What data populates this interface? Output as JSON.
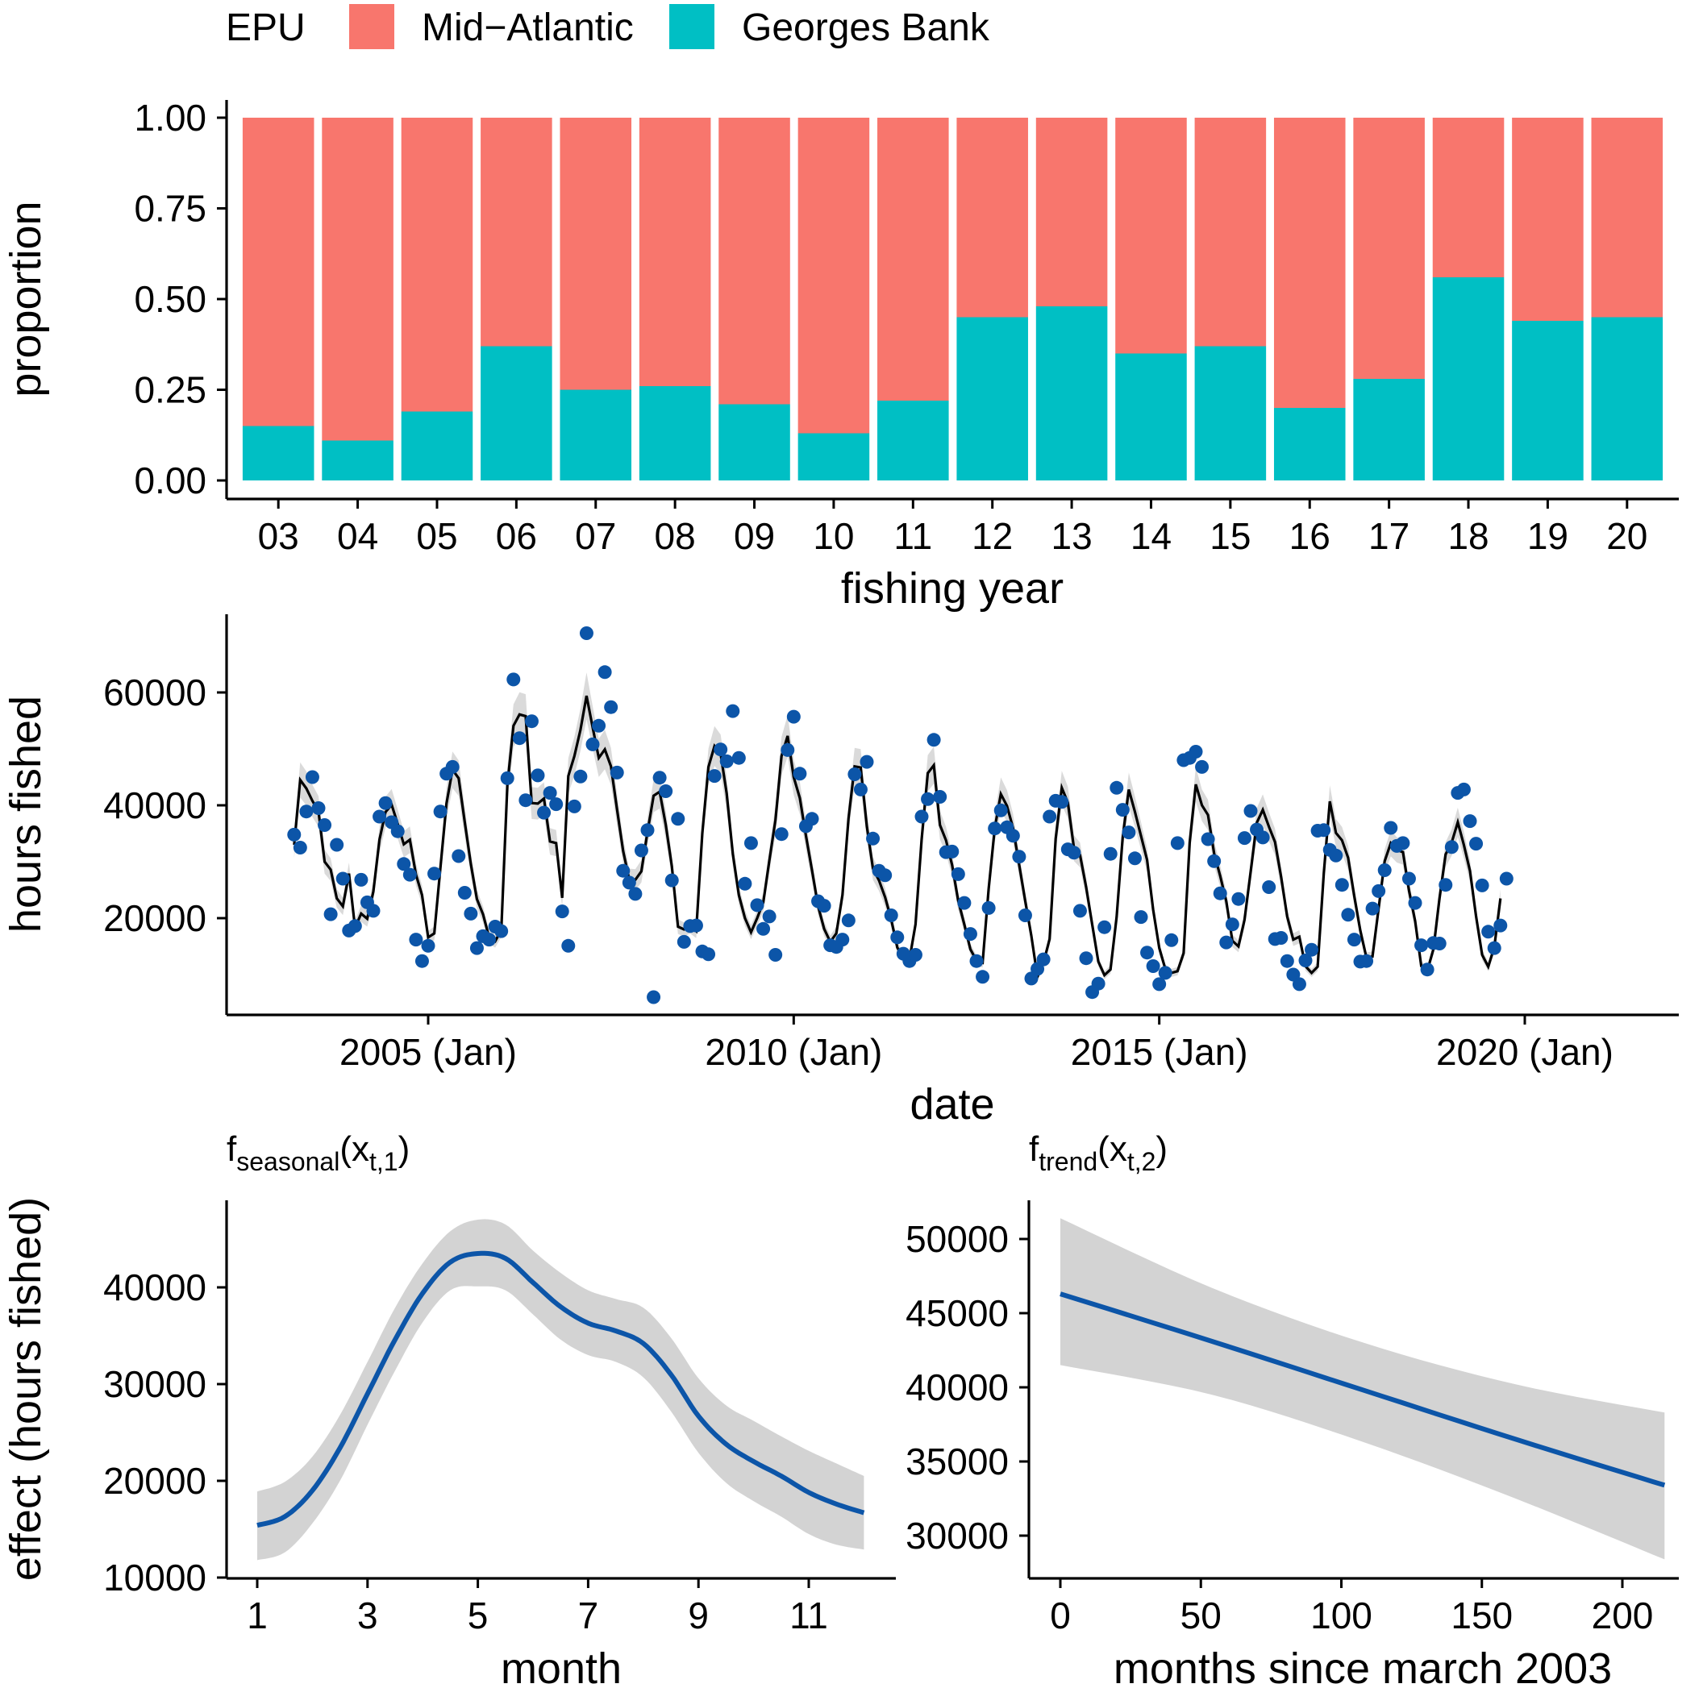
{
  "legend": {
    "title": "EPU",
    "items": [
      {
        "label": "Mid−Atlantic",
        "color": "#F8766D"
      },
      {
        "label": "Georges Bank",
        "color": "#00BFC4"
      }
    ]
  },
  "chart_data": [
    {
      "type": "bar",
      "stacked": true,
      "title": "",
      "xlabel": "fishing year",
      "ylabel": "proportion",
      "ylim": [
        0,
        1
      ],
      "yticks": [
        "0.00",
        "0.25",
        "0.50",
        "0.75",
        "1.00"
      ],
      "categories": [
        "03",
        "04",
        "05",
        "06",
        "07",
        "08",
        "09",
        "10",
        "11",
        "12",
        "13",
        "14",
        "15",
        "16",
        "17",
        "18",
        "19",
        "20"
      ],
      "series": [
        {
          "name": "Georges Bank",
          "color": "#00BFC4",
          "values": [
            0.15,
            0.11,
            0.19,
            0.37,
            0.25,
            0.26,
            0.21,
            0.13,
            0.22,
            0.45,
            0.48,
            0.35,
            0.37,
            0.2,
            0.28,
            0.56,
            0.44,
            0.45
          ]
        },
        {
          "name": "Mid−Atlantic",
          "color": "#F8766D",
          "values": [
            0.85,
            0.89,
            0.81,
            0.63,
            0.75,
            0.74,
            0.79,
            0.87,
            0.78,
            0.55,
            0.52,
            0.65,
            0.63,
            0.8,
            0.72,
            0.44,
            0.56,
            0.55
          ]
        }
      ]
    },
    {
      "type": "scatter",
      "title": "",
      "xlabel": "date",
      "ylabel": "hours fished",
      "xlim": [
        2002.5,
        2022.2
      ],
      "ylim": [
        5000,
        72000
      ],
      "xticks": [
        2005,
        2010,
        2015,
        2020
      ],
      "xtick_labels": [
        "2005 (Jan)",
        "2010 (Jan)",
        "2015 (Jan)",
        "2020 (Jan)"
      ],
      "yticks": [
        20000,
        40000,
        60000
      ],
      "yticks_labels": [
        "20000",
        "40000",
        "60000"
      ],
      "start": "2003-03",
      "series": [
        {
          "name": "observed",
          "kind": "points",
          "color": "#0C55A8",
          "values": [
            34800,
            32500,
            38900,
            45000,
            39500,
            36500,
            20700,
            33000,
            27000,
            17800,
            18600,
            26800,
            22800,
            21300,
            38000,
            40400,
            37000,
            35400,
            29600,
            27700,
            16200,
            12400,
            15100,
            27900,
            38900,
            45600,
            46800,
            31000,
            24500,
            20800,
            14700,
            16800,
            16200,
            18500,
            17700,
            44800,
            62300,
            51900,
            40900,
            54900,
            45300,
            38700,
            42200,
            40200,
            21200,
            15100,
            39800,
            45100,
            70500,
            50800,
            54100,
            63600,
            57400,
            45800,
            28400,
            26300,
            24300,
            32000,
            35600,
            6000,
            44900,
            42500,
            26700,
            37600,
            15800,
            18600,
            18700,
            14100,
            13600,
            45200,
            49900,
            47800,
            56700,
            48400,
            26100,
            33300,
            22300,
            18100,
            20300,
            13500,
            34900,
            49800,
            55700,
            45600,
            36300,
            37600,
            23000,
            22200,
            15200,
            14900,
            16200,
            19600,
            45500,
            42800,
            47700,
            34100,
            28400,
            27600,
            20500,
            16600,
            13700,
            12400,
            13500,
            38000,
            41100,
            51600,
            41500,
            31700,
            31800,
            27800,
            22700,
            17200,
            12400,
            9600,
            21800,
            35900,
            39100,
            36100,
            34600,
            30900,
            20500,
            9300,
            11000,
            12700,
            38000,
            40800,
            40600,
            32200,
            31600,
            21300,
            12900,
            6900,
            8400,
            18400,
            31400,
            43100,
            39200,
            35200,
            30600,
            20200,
            13900,
            11500,
            8300,
            10300,
            16100,
            33300,
            48000,
            48400,
            49500,
            46800,
            34000,
            30100,
            24400,
            15700,
            18900,
            23400,
            34200,
            39000,
            35700,
            34300,
            25500,
            16300,
            16500,
            12400,
            10000,
            8300,
            12500,
            14400,
            35500,
            35600,
            32100,
            31100,
            25900,
            20600,
            16200,
            12300,
            12400,
            21700,
            24800,
            28500,
            36000,
            32800,
            33300,
            27000,
            22700,
            15200,
            10900,
            15600,
            15500,
            25900,
            32600,
            42200,
            42800,
            37200,
            33200,
            25800,
            17600,
            14700,
            18700,
            27000
          ]
        },
        {
          "name": "fitted",
          "kind": "line",
          "color": "#000000",
          "values": [
            33000,
            44500,
            43000,
            40800,
            38900,
            30000,
            28600,
            23500,
            22100,
            27900,
            18300,
            20800,
            19900,
            24700,
            33900,
            38800,
            40100,
            36700,
            33100,
            33900,
            27700,
            24100,
            16600,
            17300,
            28800,
            40300,
            46300,
            44800,
            37100,
            29600,
            23400,
            20700,
            16600,
            15900,
            17900,
            43600,
            54100,
            56100,
            55800,
            40400,
            40300,
            41200,
            33600,
            33300,
            23600,
            45200,
            48700,
            53400,
            59400,
            53800,
            48400,
            49900,
            46900,
            39300,
            31900,
            26900,
            26800,
            28300,
            35300,
            41700,
            42400,
            36500,
            29200,
            18500,
            18000,
            18600,
            17700,
            35100,
            46800,
            50500,
            49100,
            42100,
            31400,
            24100,
            20000,
            17500,
            20000,
            22800,
            30200,
            37400,
            48700,
            52300,
            45000,
            41300,
            34700,
            28500,
            22100,
            18100,
            15800,
            17300,
            24100,
            37700,
            46900,
            46700,
            36300,
            28800,
            26700,
            23700,
            19800,
            14800,
            12900,
            12700,
            18900,
            34000,
            45700,
            47100,
            36500,
            33800,
            29400,
            23100,
            18900,
            14500,
            12500,
            12100,
            25200,
            36000,
            42000,
            39900,
            36000,
            29500,
            23100,
            16900,
            9600,
            12100,
            16300,
            34100,
            43100,
            40500,
            32400,
            31200,
            25500,
            18800,
            12300,
            9900,
            10900,
            20200,
            34300,
            42800,
            38900,
            34600,
            30300,
            21500,
            14700,
            11000,
            10300,
            10600,
            13800,
            33400,
            43700,
            40000,
            38300,
            31500,
            27500,
            23000,
            16000,
            15000,
            19700,
            28200,
            36900,
            39200,
            36200,
            33500,
            27300,
            20300,
            16200,
            16700,
            11500,
            10300,
            11400,
            27900,
            40700,
            35100,
            33800,
            30700,
            24000,
            17800,
            13000,
            13200,
            21700,
            30100,
            33300,
            32100,
            31700,
            24900,
            19500,
            11500,
            10700,
            14500,
            23500,
            31300,
            33400,
            37000,
            33000,
            28400,
            20300,
            13500,
            11400,
            14900,
            23500
          ]
        }
      ]
    },
    {
      "type": "line",
      "title_main": "f",
      "title_sub": "seasonal",
      "title_args": "(x",
      "title_args_sub": "t,1",
      "title_close": ")",
      "xlabel": "month",
      "ylabel": "effect (hours fished)",
      "xlim": [
        0.65,
        12.3
      ],
      "ylim": [
        9500,
        47500
      ],
      "xticks": [
        1,
        3,
        5,
        7,
        9,
        11
      ],
      "xtick_labels": [
        "1",
        "3",
        "5",
        "7",
        "9",
        "11"
      ],
      "yticks": [
        10000,
        20000,
        30000,
        40000
      ],
      "ytick_labels": [
        "10000",
        "20000",
        "30000",
        "40000"
      ],
      "x": [
        1,
        1.5,
        2,
        2.5,
        3,
        3.5,
        4,
        4.5,
        5,
        5.5,
        6,
        6.5,
        7,
        7.5,
        8,
        8.5,
        9,
        9.5,
        10,
        10.5,
        11,
        11.5,
        12
      ],
      "series": [
        {
          "name": "estimate",
          "color": "#0C55A8",
          "values": [
            15400,
            16300,
            19000,
            23400,
            29000,
            34600,
            39400,
            42600,
            43500,
            43000,
            40500,
            38000,
            36300,
            35500,
            34200,
            31000,
            26700,
            23800,
            22000,
            20500,
            18800,
            17600,
            16700
          ]
        },
        {
          "name": "lower",
          "color": "#D3D3D3",
          "values": [
            11800,
            12600,
            15600,
            20000,
            25800,
            31400,
            36400,
            39700,
            40100,
            39700,
            37200,
            34600,
            33000,
            32300,
            30700,
            27200,
            22900,
            19800,
            17900,
            16300,
            14500,
            13400,
            12900
          ]
        },
        {
          "name": "upper",
          "color": "#D3D3D3",
          "values": [
            18900,
            19900,
            22500,
            26800,
            32300,
            37900,
            42500,
            45800,
            47000,
            46500,
            43800,
            41500,
            39700,
            38800,
            37900,
            34800,
            30600,
            27800,
            26200,
            24600,
            23100,
            21800,
            20500
          ]
        }
      ]
    },
    {
      "type": "line",
      "title_main": "f",
      "title_sub": "trend",
      "title_args": "(x",
      "title_args_sub": "t,2",
      "title_close": ")",
      "xlabel": "months since march 2003",
      "ylabel": "",
      "xlim": [
        -11,
        226
      ],
      "ylim": [
        28000,
        53000
      ],
      "xticks": [
        0,
        50,
        100,
        150,
        200
      ],
      "xtick_labels": [
        "0",
        "50",
        "100",
        "150",
        "200"
      ],
      "yticks": [
        30000,
        35000,
        40000,
        45000,
        50000
      ],
      "ytick_labels": [
        "30000",
        "35000",
        "40000",
        "45000",
        "50000"
      ],
      "x": [
        0,
        54,
        108,
        162,
        215
      ],
      "series": [
        {
          "name": "estimate",
          "color": "#0C55A8",
          "values": [
            46300,
            43100,
            39800,
            36500,
            33400
          ]
        },
        {
          "name": "lower",
          "color": "#D3D3D3",
          "values": [
            41500,
            39500,
            36300,
            32500,
            28400
          ]
        },
        {
          "name": "upper",
          "color": "#D3D3D3",
          "values": [
            51400,
            46700,
            43000,
            40200,
            38300
          ]
        }
      ]
    }
  ]
}
